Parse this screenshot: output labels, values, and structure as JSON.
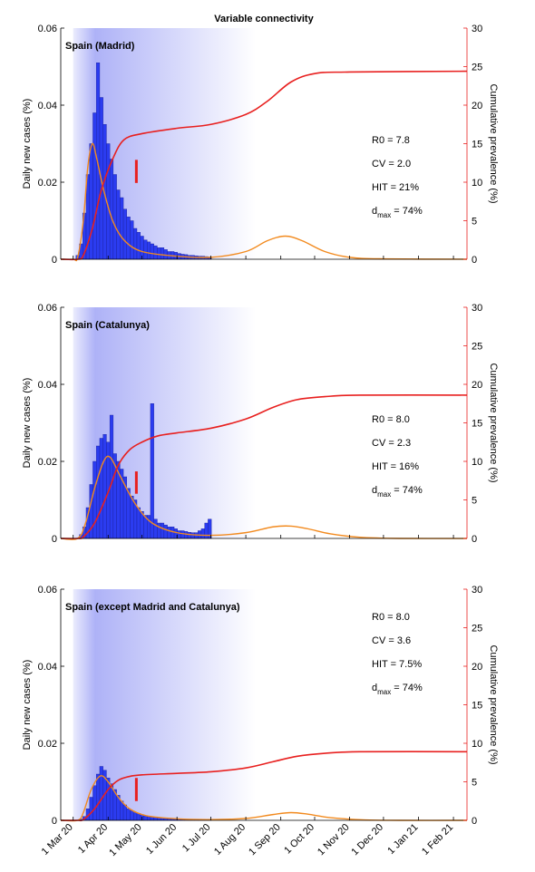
{
  "chart_data": [
    {
      "type": "combo",
      "title": "Variable connectivity",
      "subtitle": "Spain (Madrid)",
      "ylabel": "Daily new cases (%)",
      "y2label": "Cumulative prevalence (%)",
      "xlim": [
        "2020-02-19",
        "2021-02-13"
      ],
      "ylim": [
        0,
        0.06
      ],
      "yticks": [
        0,
        0.02,
        0.04,
        0.06
      ],
      "y2lim": [
        0,
        30
      ],
      "y2ticks": [
        0,
        5,
        10,
        15,
        20,
        25,
        30
      ],
      "xticks": [
        "2020-03-01",
        "2020-04-01",
        "2020-05-01",
        "2020-06-01",
        "2020-07-01",
        "2020-08-01",
        "2020-09-01",
        "2020-10-01",
        "2020-11-01",
        "2020-12-01",
        "2021-01-01",
        "2021-02-01"
      ],
      "shade": [
        "2020-03-01",
        "2020-08-10"
      ],
      "shade_color": "#aeb2f7",
      "bars": {
        "color": "#2b3cf0",
        "x": [
          "2020-03-05",
          "2020-03-08",
          "2020-03-11",
          "2020-03-14",
          "2020-03-17",
          "2020-03-20",
          "2020-03-23",
          "2020-03-26",
          "2020-03-29",
          "2020-04-01",
          "2020-04-04",
          "2020-04-07",
          "2020-04-10",
          "2020-04-13",
          "2020-04-16",
          "2020-04-19",
          "2020-04-22",
          "2020-04-25",
          "2020-04-28",
          "2020-05-01",
          "2020-05-04",
          "2020-05-07",
          "2020-05-10",
          "2020-05-13",
          "2020-05-16",
          "2020-05-19",
          "2020-05-22",
          "2020-05-25",
          "2020-05-28",
          "2020-05-31",
          "2020-06-03",
          "2020-06-06",
          "2020-06-09",
          "2020-06-12",
          "2020-06-15",
          "2020-06-18",
          "2020-06-21",
          "2020-06-24",
          "2020-06-27",
          "2020-06-30"
        ],
        "values": [
          0.001,
          0.004,
          0.012,
          0.022,
          0.03,
          0.038,
          0.051,
          0.042,
          0.035,
          0.03,
          0.026,
          0.022,
          0.018,
          0.016,
          0.013,
          0.011,
          0.01,
          0.008,
          0.007,
          0.006,
          0.005,
          0.0045,
          0.004,
          0.0035,
          0.003,
          0.003,
          0.0025,
          0.002,
          0.002,
          0.0018,
          0.0015,
          0.0013,
          0.0012,
          0.001,
          0.001,
          0.0009,
          0.0008,
          0.0008,
          0.0007,
          0.0006
        ]
      },
      "series": [
        {
          "color": "#f28a1e",
          "axis": "y",
          "x": [
            "2020-02-19",
            "2020-03-01",
            "2020-03-05",
            "2020-03-10",
            "2020-03-14",
            "2020-03-18",
            "2020-03-22",
            "2020-03-28",
            "2020-04-05",
            "2020-04-15",
            "2020-05-01",
            "2020-06-01",
            "2020-07-01",
            "2020-08-01",
            "2020-08-20",
            "2020-09-05",
            "2020-09-20",
            "2020-10-10",
            "2020-11-01",
            "2020-12-01",
            "2021-02-13"
          ],
          "values": [
            0,
            0,
            0.0005,
            0.01,
            0.024,
            0.03,
            0.026,
            0.018,
            0.01,
            0.005,
            0.002,
            0.0008,
            0.0005,
            0.002,
            0.0048,
            0.006,
            0.0048,
            0.002,
            0.0005,
            0.0001,
            0
          ]
        },
        {
          "color": "#e8201f",
          "axis": "y2",
          "x": [
            "2020-02-19",
            "2020-03-05",
            "2020-03-10",
            "2020-03-18",
            "2020-03-26",
            "2020-04-05",
            "2020-04-15",
            "2020-05-01",
            "2020-06-01",
            "2020-07-01",
            "2020-08-01",
            "2020-08-20",
            "2020-09-10",
            "2020-10-01",
            "2020-11-01",
            "2021-02-13"
          ],
          "values": [
            0,
            0,
            0.5,
            4,
            9,
            13,
            15.5,
            16.3,
            17,
            17.5,
            18.8,
            20.5,
            23,
            24.1,
            24.3,
            24.4
          ]
        }
      ],
      "marker": {
        "x": "2020-04-26",
        "values": [
          9.9,
          12.9
        ],
        "color": "#e8201f"
      },
      "annotations": [
        "R0 = 7.8",
        "CV = 2.0",
        "HIT = 21%"
      ],
      "dmax": [
        "d",
        "max",
        " = 74%"
      ]
    },
    {
      "type": "combo",
      "subtitle": "Spain (Catalunya)",
      "ylabel": "Daily new cases (%)",
      "y2label": "Cumulative prevalence (%)",
      "xlim": [
        "2020-02-19",
        "2021-02-13"
      ],
      "ylim": [
        0,
        0.06
      ],
      "yticks": [
        0,
        0.02,
        0.04,
        0.06
      ],
      "y2lim": [
        0,
        30
      ],
      "y2ticks": [
        0,
        5,
        10,
        15,
        20,
        25,
        30
      ],
      "xticks": [
        "2020-03-01",
        "2020-04-01",
        "2020-05-01",
        "2020-06-01",
        "2020-07-01",
        "2020-08-01",
        "2020-09-01",
        "2020-10-01",
        "2020-11-01",
        "2020-12-01",
        "2021-01-01",
        "2021-02-01"
      ],
      "shade": [
        "2020-03-01",
        "2020-08-10"
      ],
      "shade_color": "#aeb2f7",
      "bars": {
        "color": "#2b3cf0",
        "x": [
          "2020-03-05",
          "2020-03-08",
          "2020-03-11",
          "2020-03-14",
          "2020-03-17",
          "2020-03-20",
          "2020-03-23",
          "2020-03-26",
          "2020-03-29",
          "2020-04-01",
          "2020-04-04",
          "2020-04-07",
          "2020-04-10",
          "2020-04-13",
          "2020-04-16",
          "2020-04-19",
          "2020-04-22",
          "2020-04-25",
          "2020-04-28",
          "2020-05-01",
          "2020-05-04",
          "2020-05-07",
          "2020-05-10",
          "2020-05-13",
          "2020-05-16",
          "2020-05-19",
          "2020-05-22",
          "2020-05-25",
          "2020-05-28",
          "2020-05-31",
          "2020-06-03",
          "2020-06-06",
          "2020-06-09",
          "2020-06-12",
          "2020-06-15",
          "2020-06-18",
          "2020-06-21",
          "2020-06-24",
          "2020-06-27",
          "2020-06-30"
        ],
        "values": [
          0,
          0.001,
          0.003,
          0.008,
          0.014,
          0.02,
          0.024,
          0.026,
          0.027,
          0.025,
          0.032,
          0.022,
          0.02,
          0.018,
          0.016,
          0.013,
          0.011,
          0.01,
          0.008,
          0.007,
          0.006,
          0.006,
          0.035,
          0.005,
          0.004,
          0.004,
          0.0035,
          0.003,
          0.003,
          0.0025,
          0.002,
          0.002,
          0.0018,
          0.0016,
          0.0015,
          0.0015,
          0.002,
          0.0025,
          0.004,
          0.005
        ]
      },
      "series": [
        {
          "color": "#f28a1e",
          "axis": "y",
          "x": [
            "2020-02-19",
            "2020-03-05",
            "2020-03-12",
            "2020-03-20",
            "2020-03-28",
            "2020-04-03",
            "2020-04-12",
            "2020-04-25",
            "2020-05-10",
            "2020-06-01",
            "2020-07-01",
            "2020-08-01",
            "2020-08-25",
            "2020-09-10",
            "2020-09-25",
            "2020-10-15",
            "2020-11-10",
            "2020-12-15",
            "2021-02-13"
          ],
          "values": [
            0,
            0,
            0.004,
            0.013,
            0.02,
            0.021,
            0.016,
            0.009,
            0.004,
            0.0015,
            0.0008,
            0.0015,
            0.003,
            0.0032,
            0.0025,
            0.0012,
            0.0003,
            0,
            0
          ]
        },
        {
          "color": "#e8201f",
          "axis": "y2",
          "x": [
            "2020-02-19",
            "2020-03-05",
            "2020-03-10",
            "2020-03-20",
            "2020-04-01",
            "2020-04-10",
            "2020-04-20",
            "2020-05-01",
            "2020-05-15",
            "2020-06-01",
            "2020-07-01",
            "2020-08-01",
            "2020-08-25",
            "2020-09-15",
            "2020-10-10",
            "2020-11-10",
            "2021-02-13"
          ],
          "values": [
            0,
            0,
            0.2,
            2,
            6,
            9.5,
            11.5,
            12.5,
            13.3,
            13.7,
            14.3,
            15.5,
            17,
            18,
            18.4,
            18.6,
            18.6
          ]
        }
      ],
      "marker": {
        "x": "2020-04-26",
        "values": [
          5.8,
          8.7
        ],
        "color": "#e8201f"
      },
      "annotations": [
        "R0 = 8.0",
        "CV = 2.3",
        "HIT = 16%"
      ],
      "dmax": [
        "d",
        "max",
        " = 74%"
      ]
    },
    {
      "type": "combo",
      "subtitle": "Spain (except Madrid and Catalunya)",
      "ylabel": "Daily new cases (%)",
      "y2label": "Cumulative prevalence (%)",
      "xlim": [
        "2020-02-19",
        "2021-02-13"
      ],
      "ylim": [
        0,
        0.06
      ],
      "yticks": [
        0,
        0.02,
        0.04,
        0.06
      ],
      "y2lim": [
        0,
        30
      ],
      "y2ticks": [
        0,
        5,
        10,
        15,
        20,
        25,
        30
      ],
      "xticks": [
        {
          "value": "2020-03-01",
          "label": "1 Mar 20"
        },
        {
          "value": "2020-04-01",
          "label": "1 Apr 20"
        },
        {
          "value": "2020-05-01",
          "label": "1 May 20"
        },
        {
          "value": "2020-06-01",
          "label": "1 Jun 20"
        },
        {
          "value": "2020-07-01",
          "label": "1 Jul 20"
        },
        {
          "value": "2020-08-01",
          "label": "1 Aug 20"
        },
        {
          "value": "2020-09-01",
          "label": "1 Sep 20"
        },
        {
          "value": "2020-10-01",
          "label": "1 Oct 20"
        },
        {
          "value": "2020-11-01",
          "label": "1 Nov 20"
        },
        {
          "value": "2020-12-01",
          "label": "1 Dec 20"
        },
        {
          "value": "2021-01-01",
          "label": "1 Jan 21"
        },
        {
          "value": "2021-02-01",
          "label": "1 Feb 21"
        }
      ],
      "shade": [
        "2020-03-01",
        "2020-08-10"
      ],
      "shade_color": "#aeb2f7",
      "bars": {
        "color": "#2b3cf0",
        "x": [
          "2020-03-05",
          "2020-03-08",
          "2020-03-11",
          "2020-03-14",
          "2020-03-17",
          "2020-03-20",
          "2020-03-23",
          "2020-03-26",
          "2020-03-29",
          "2020-04-01",
          "2020-04-04",
          "2020-04-07",
          "2020-04-10",
          "2020-04-13",
          "2020-04-16",
          "2020-04-19",
          "2020-04-22",
          "2020-04-25",
          "2020-04-28",
          "2020-05-01",
          "2020-05-04",
          "2020-05-07",
          "2020-05-10",
          "2020-05-13",
          "2020-05-16",
          "2020-05-19",
          "2020-05-22",
          "2020-05-25",
          "2020-05-28",
          "2020-05-31",
          "2020-06-03",
          "2020-06-06",
          "2020-06-09",
          "2020-06-12",
          "2020-06-15",
          "2020-06-18",
          "2020-06-21",
          "2020-06-24",
          "2020-06-27",
          "2020-06-30"
        ],
        "values": [
          0,
          0.0003,
          0.001,
          0.003,
          0.006,
          0.009,
          0.012,
          0.014,
          0.013,
          0.011,
          0.0095,
          0.008,
          0.0065,
          0.005,
          0.004,
          0.003,
          0.0025,
          0.002,
          0.0018,
          0.0015,
          0.0012,
          0.001,
          0.0009,
          0.0008,
          0.0007,
          0.0006,
          0.0005,
          0.0005,
          0.0004,
          0.0004,
          0.0003,
          0.0003,
          0.0003,
          0.0003,
          0.0002,
          0.0002,
          0.0002,
          0.0002,
          0.0002,
          0.0002
        ]
      },
      "series": [
        {
          "color": "#f28a1e",
          "axis": "y",
          "x": [
            "2020-02-19",
            "2020-03-05",
            "2020-03-10",
            "2020-03-17",
            "2020-03-25",
            "2020-04-01",
            "2020-04-10",
            "2020-04-20",
            "2020-05-05",
            "2020-06-01",
            "2020-07-01",
            "2020-08-01",
            "2020-08-25",
            "2020-09-10",
            "2020-09-25",
            "2020-10-15",
            "2020-11-15",
            "2020-12-15",
            "2021-02-13"
          ],
          "values": [
            0,
            0,
            0.002,
            0.008,
            0.0115,
            0.01,
            0.006,
            0.003,
            0.0012,
            0.0004,
            0.0002,
            0.0005,
            0.0015,
            0.002,
            0.0016,
            0.0007,
            0.0001,
            0,
            0
          ]
        },
        {
          "color": "#e8201f",
          "axis": "y2",
          "x": [
            "2020-02-19",
            "2020-03-05",
            "2020-03-10",
            "2020-03-20",
            "2020-04-01",
            "2020-04-10",
            "2020-04-20",
            "2020-05-01",
            "2020-06-01",
            "2020-07-01",
            "2020-08-01",
            "2020-08-25",
            "2020-09-15",
            "2020-10-10",
            "2020-11-10",
            "2021-02-13"
          ],
          "values": [
            0,
            0,
            0.1,
            1.5,
            4,
            5.2,
            5.7,
            5.9,
            6.1,
            6.3,
            6.8,
            7.6,
            8.3,
            8.7,
            8.9,
            8.9
          ]
        }
      ],
      "marker": {
        "x": "2020-04-26",
        "values": [
          2.5,
          5.5
        ],
        "color": "#e8201f"
      },
      "annotations": [
        "R0 = 8.0",
        "CV = 3.6",
        "HIT = 7.5%"
      ],
      "dmax": [
        "d",
        "max",
        " = 74%"
      ]
    }
  ]
}
